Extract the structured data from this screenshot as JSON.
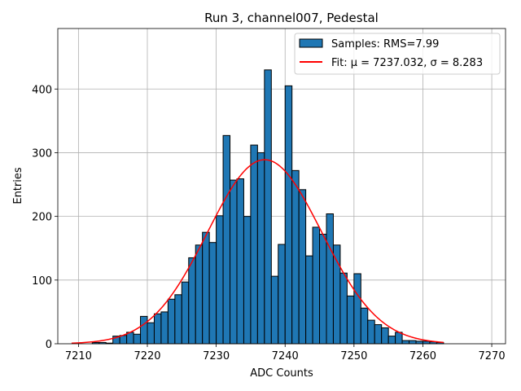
{
  "chart_data": {
    "type": "bar",
    "title": "Run 3, channel007, Pedestal",
    "xlabel": "ADC Counts",
    "ylabel": "Entries",
    "xlim": [
      7207,
      7272
    ],
    "ylim": [
      0,
      495
    ],
    "xticks": [
      7210,
      7220,
      7230,
      7240,
      7250,
      7260,
      7270
    ],
    "yticks": [
      0,
      100,
      200,
      300,
      400
    ],
    "grid": true,
    "legend_position": "top-right",
    "bin_width": 1,
    "histogram": {
      "name": "Samples: RMS=7.99",
      "color": "#1f77b4",
      "edge_color": "#000000",
      "bin_starts": [
        7212,
        7213,
        7214,
        7215,
        7216,
        7217,
        7218,
        7219,
        7220,
        7221,
        7222,
        7223,
        7224,
        7225,
        7226,
        7227,
        7228,
        7229,
        7230,
        7231,
        7232,
        7233,
        7234,
        7235,
        7236,
        7237,
        7238,
        7239,
        7240,
        7241,
        7242,
        7243,
        7244,
        7245,
        7246,
        7247,
        7248,
        7249,
        7250,
        7251,
        7252,
        7253,
        7254,
        7255,
        7256,
        7257,
        7258,
        7259,
        7260,
        7261,
        7262
      ],
      "values": [
        2,
        2,
        1,
        12,
        13,
        18,
        15,
        43,
        33,
        47,
        50,
        70,
        77,
        97,
        135,
        155,
        175,
        159,
        201,
        327,
        257,
        259,
        200,
        312,
        300,
        430,
        106,
        156,
        405,
        272,
        242,
        138,
        183,
        172,
        204,
        155,
        111,
        75,
        110,
        56,
        37,
        30,
        25,
        12,
        18,
        5,
        5,
        4,
        4,
        3,
        2
      ]
    },
    "fit": {
      "name": "Fit: μ = 7237.032, σ = 8.283",
      "color": "#ff0000",
      "mu": 7237.032,
      "sigma": 8.283,
      "amplitude": 289,
      "x_range": [
        7209,
        7263
      ]
    }
  }
}
